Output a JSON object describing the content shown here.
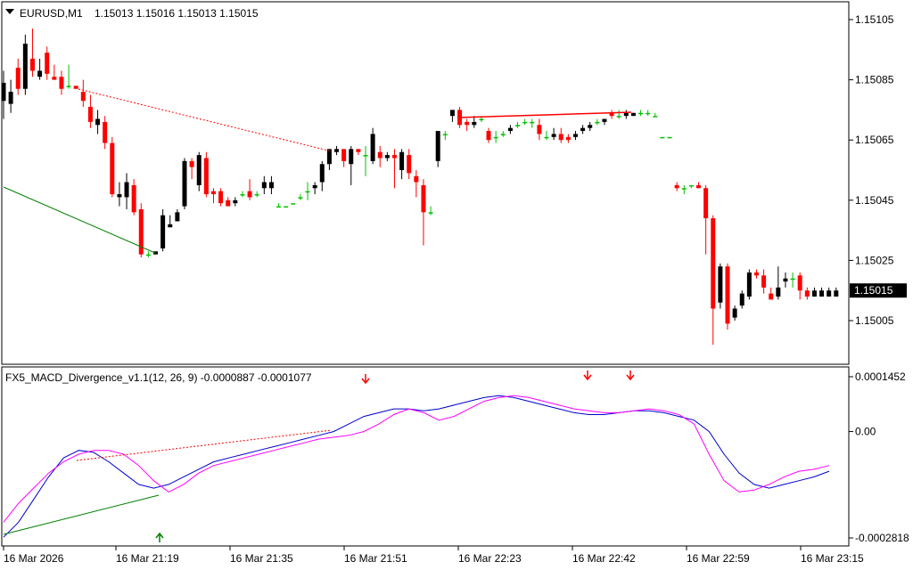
{
  "main": {
    "symbol": "EURUSD,M1",
    "ohlc": "1.15013 1.15016 1.15013 1.15015",
    "price_labels": [
      "1.15105",
      "1.15085",
      "1.15065",
      "1.15045",
      "1.15025",
      "1.15005"
    ],
    "price_values": [
      1.15105,
      1.15085,
      1.15065,
      1.15045,
      1.15025,
      1.15005
    ],
    "current_price_label": "1.15015",
    "current_price": 1.15015,
    "colors": {
      "bull": "#000000",
      "bear": "#ff0000",
      "doji": "#00c000",
      "trend_dn": "#ff0000",
      "trend_up": "#008000",
      "current_bg": "#000000"
    }
  },
  "indicator": {
    "name": "FX5_MACD_Divergence_v1.1(12, 26, 9) -0.0000887 -0.0001077",
    "scale_labels": [
      "0.0001452",
      "0.00",
      "-0.0002818"
    ],
    "scale_values": [
      0.0001452,
      0.0,
      -0.0002818
    ],
    "colors": {
      "main": "#ff00ff",
      "signal": "#0000cc",
      "arrow_down": "#ff0000",
      "arrow_up": "#008000"
    }
  },
  "time_labels": [
    "16 Mar 2026",
    "16 Mar 21:19",
    "16 Mar 21:35",
    "16 Mar 21:51",
    "16 Mar 22:23",
    "16 Mar 22:42",
    "16 Mar 22:59",
    "16 Mar 23:15"
  ],
  "chart_data": {
    "type": "candlestick",
    "x_slots": 116,
    "candles": [
      [
        1.15078,
        1.15088,
        1.15072,
        1.15084
      ],
      [
        1.15077,
        1.15085,
        1.15074,
        1.15081
      ],
      [
        1.15089,
        1.15092,
        1.1508,
        1.15082
      ],
      [
        1.15082,
        1.151,
        1.1508,
        1.15097
      ],
      [
        1.15092,
        1.15102,
        1.15086,
        1.15088
      ],
      [
        1.15086,
        1.15092,
        1.15085,
        1.15088
      ],
      [
        1.15094,
        1.15096,
        1.15085,
        1.15087
      ],
      [
        1.15086,
        1.1509,
        1.15085,
        1.15085
      ],
      [
        1.15086,
        1.15088,
        1.1508,
        1.15082
      ],
      [
        1.15083,
        1.1509,
        1.15082,
        1.15083
      ],
      [
        1.15083,
        1.15083,
        1.15082,
        1.15082
      ],
      [
        1.15081,
        1.15085,
        1.15076,
        1.15078
      ],
      [
        1.15076,
        1.1508,
        1.15069,
        1.15071
      ],
      [
        1.1507,
        1.15075,
        1.15067,
        1.15072
      ],
      [
        1.15071,
        1.15073,
        1.15062,
        1.15064
      ],
      [
        1.15064,
        1.15066,
        1.15046,
        1.15047
      ],
      [
        1.15046,
        1.15051,
        1.15043,
        1.15047
      ],
      [
        1.15046,
        1.15054,
        1.15042,
        1.15051
      ],
      [
        1.1505,
        1.15052,
        1.1504,
        1.15041
      ],
      [
        1.15042,
        1.15044,
        1.15026,
        1.15027
      ],
      [
        1.15027,
        1.15028,
        1.15026,
        1.15027
      ],
      [
        1.15027,
        1.15028,
        1.15027,
        1.15028
      ],
      [
        1.15029,
        1.15042,
        1.15028,
        1.1504
      ],
      [
        1.15036,
        1.1504,
        1.15036,
        1.15037
      ],
      [
        1.15038,
        1.15042,
        1.15038,
        1.15041
      ],
      [
        1.15043,
        1.15059,
        1.15042,
        1.15058
      ],
      [
        1.15058,
        1.15059,
        1.15052,
        1.15056
      ],
      [
        1.1505,
        1.15061,
        1.15048,
        1.1506
      ],
      [
        1.15059,
        1.15061,
        1.15046,
        1.15047
      ],
      [
        1.15048,
        1.15049,
        1.15044,
        1.15047
      ],
      [
        1.15048,
        1.15049,
        1.15043,
        1.15044
      ],
      [
        1.15045,
        1.15046,
        1.15043,
        1.15043
      ],
      [
        1.15044,
        1.15046,
        1.15043,
        1.15045
      ],
      [
        1.15047,
        1.15048,
        1.15046,
        1.15047
      ],
      [
        1.15048,
        1.15052,
        1.15045,
        1.15046
      ],
      [
        1.15047,
        1.15048,
        1.15046,
        1.15047
      ],
      [
        1.15049,
        1.15053,
        1.15047,
        1.15051
      ],
      [
        1.15049,
        1.15053,
        1.15047,
        1.15051
      ],
      [
        1.15043,
        1.15044,
        1.15043,
        1.15043
      ],
      [
        1.15043,
        1.15043,
        1.15043,
        1.15043
      ],
      [
        1.15044,
        1.15044,
        1.15044,
        1.15044
      ],
      [
        1.15046,
        1.15047,
        1.15045,
        1.15046
      ],
      [
        1.15048,
        1.15051,
        1.15045,
        1.15048
      ],
      [
        1.15049,
        1.15051,
        1.15047,
        1.1505
      ],
      [
        1.15051,
        1.15058,
        1.15048,
        1.15057
      ],
      [
        1.15057,
        1.15061,
        1.15055,
        1.15062
      ],
      [
        1.15061,
        1.15063,
        1.1506,
        1.15062
      ],
      [
        1.15062,
        1.15062,
        1.15056,
        1.15058
      ],
      [
        1.15057,
        1.15063,
        1.1505,
        1.15062
      ],
      [
        1.15062,
        1.15062,
        1.1506,
        1.15061
      ],
      [
        1.1506,
        1.15063,
        1.15053,
        1.1506
      ],
      [
        1.15058,
        1.15069,
        1.15057,
        1.15067
      ],
      [
        1.15061,
        1.15063,
        1.15056,
        1.15059
      ],
      [
        1.15059,
        1.15061,
        1.15058,
        1.1506
      ],
      [
        1.1506,
        1.15062,
        1.15049,
        1.15059
      ],
      [
        1.15055,
        1.15062,
        1.15052,
        1.15061
      ],
      [
        1.1506,
        1.15062,
        1.15052,
        1.15054
      ],
      [
        1.15053,
        1.15055,
        1.15046,
        1.15051
      ],
      [
        1.1505,
        1.15052,
        1.1503,
        1.15041
      ],
      [
        1.15041,
        1.15043,
        1.1504,
        1.15041
      ],
      [
        1.15058,
        1.15068,
        1.15056,
        1.15068
      ],
      [
        1.15067,
        1.15068,
        1.15065,
        1.15067
      ],
      [
        1.15073,
        1.15074,
        1.15071,
        1.15075
      ],
      [
        1.15075,
        1.15076,
        1.15069,
        1.1507
      ],
      [
        1.15071,
        1.15072,
        1.15068,
        1.1507
      ],
      [
        1.1507,
        1.15073,
        1.15069,
        1.15071
      ],
      [
        1.15072,
        1.15073,
        1.15071,
        1.15072
      ],
      [
        1.15068,
        1.15069,
        1.15064,
        1.15065
      ],
      [
        1.15066,
        1.15068,
        1.15064,
        1.15066
      ],
      [
        1.15067,
        1.15068,
        1.15066,
        1.15067
      ],
      [
        1.15068,
        1.1507,
        1.15067,
        1.15069
      ],
      [
        1.1507,
        1.15071,
        1.15069,
        1.1507
      ],
      [
        1.15071,
        1.15072,
        1.1507,
        1.15071
      ],
      [
        1.15071,
        1.15072,
        1.15069,
        1.15071
      ],
      [
        1.1507,
        1.15072,
        1.15065,
        1.15067
      ],
      [
        1.15066,
        1.15068,
        1.15065,
        1.15066
      ],
      [
        1.15066,
        1.15069,
        1.15065,
        1.15067
      ],
      [
        1.15067,
        1.15069,
        1.15064,
        1.15065
      ],
      [
        1.15066,
        1.15067,
        1.15064,
        1.15065
      ],
      [
        1.15066,
        1.15068,
        1.15065,
        1.15067
      ],
      [
        1.15068,
        1.1507,
        1.15067,
        1.15069
      ],
      [
        1.15069,
        1.15071,
        1.15068,
        1.1507
      ],
      [
        1.15071,
        1.15072,
        1.1507,
        1.15071
      ],
      [
        1.15071,
        1.15072,
        1.1507,
        1.15072
      ],
      [
        1.15074,
        1.15075,
        1.15072,
        1.15073
      ],
      [
        1.15073,
        1.15075,
        1.15072,
        1.15073
      ],
      [
        1.15073,
        1.15075,
        1.15072,
        1.15074
      ],
      [
        1.15073,
        1.15074,
        1.15073,
        1.15074
      ],
      [
        1.15074,
        1.15075,
        1.15073,
        1.15074
      ],
      [
        1.15074,
        1.15075,
        1.15073,
        1.15074
      ],
      [
        1.15073,
        1.15074,
        1.15073,
        1.15073
      ],
      [
        1.15066,
        1.15066,
        1.15066,
        1.15066
      ],
      [
        1.15066,
        1.15066,
        1.15066,
        1.15066
      ],
      [
        1.1505,
        1.15051,
        1.15048,
        1.15049
      ],
      [
        1.15049,
        1.1505,
        1.15047,
        1.15049
      ],
      [
        1.1505,
        1.1505,
        1.15049,
        1.1505
      ],
      [
        1.1505,
        1.15051,
        1.15049,
        1.15049
      ],
      [
        1.15049,
        1.1505,
        1.15027,
        1.15039
      ],
      [
        1.15039,
        1.1504,
        1.14997,
        1.15009
      ],
      [
        1.15011,
        1.15024,
        1.15009,
        1.15023
      ],
      [
        1.15023,
        1.15024,
        1.15002,
        1.15004
      ],
      [
        1.15006,
        1.1501,
        1.15005,
        1.15009
      ],
      [
        1.1501,
        1.15015,
        1.15009,
        1.15014
      ],
      [
        1.15013,
        1.15022,
        1.15012,
        1.15021
      ],
      [
        1.15021,
        1.15022,
        1.15019,
        1.1502
      ],
      [
        1.1502,
        1.15022,
        1.15014,
        1.15016
      ],
      [
        1.15014,
        1.15016,
        1.15012,
        1.15012
      ],
      [
        1.15013,
        1.15023,
        1.15012,
        1.15016
      ],
      [
        1.15018,
        1.15021,
        1.15016,
        1.15019
      ],
      [
        1.15019,
        1.15021,
        1.15016,
        1.15019
      ],
      [
        1.1502,
        1.15021,
        1.15012,
        1.15015
      ],
      [
        1.15015,
        1.15016,
        1.15012,
        1.15013
      ],
      [
        1.15013,
        1.15016,
        1.15013,
        1.15015
      ],
      [
        1.15013,
        1.15016,
        1.15013,
        1.15015
      ],
      [
        1.15013,
        1.15016,
        1.15013,
        1.15015
      ],
      [
        1.15013,
        1.15016,
        1.15013,
        1.15015
      ]
    ],
    "macd_main": [
      -0.00024,
      -0.00019,
      -0.00015,
      -0.00011,
      -8e-05,
      -6e-05,
      -5e-05,
      -5e-05,
      -6e-05,
      -9e-05,
      -0.00013,
      -0.00016,
      -0.00014,
      -0.00011,
      -9e-05,
      -8e-05,
      -7e-05,
      -6e-05,
      -5e-05,
      -4e-05,
      -3e-05,
      -2e-05,
      -1.5e-05,
      -1e-05,
      0.0,
      2e-05,
      4.5e-05,
      6e-05,
      5e-05,
      3e-05,
      4e-05,
      6e-05,
      8e-05,
      9e-05,
      9.5e-05,
      9e-05,
      8e-05,
      7e-05,
      6e-05,
      5.5e-05,
      5e-05,
      5e-05,
      5.5e-05,
      6e-05,
      5.5e-05,
      4.5e-05,
      2e-05,
      -6e-05,
      -0.00013,
      -0.00016,
      -0.000155,
      -0.00014,
      -0.00012,
      -0.000105,
      -0.0001,
      -9e-05
    ],
    "macd_signal": [
      -0.00028,
      -0.00024,
      -0.00018,
      -0.00012,
      -7e-05,
      -5e-05,
      -5.5e-05,
      -8e-05,
      -0.00011,
      -0.00014,
      -0.00015,
      -0.00014,
      -0.00012,
      -0.0001,
      -8e-05,
      -7e-05,
      -6e-05,
      -5e-05,
      -4e-05,
      -3e-05,
      -2e-05,
      -1e-05,
      0.0,
      2e-05,
      4e-05,
      5e-05,
      6e-05,
      6e-05,
      5.5e-05,
      6e-05,
      7e-05,
      8e-05,
      9e-05,
      9.5e-05,
      9e-05,
      8e-05,
      7e-05,
      6e-05,
      5e-05,
      4.5e-05,
      4.5e-05,
      5e-05,
      5.5e-05,
      5.5e-05,
      5e-05,
      4e-05,
      3e-05,
      0.0,
      -6e-05,
      -0.00011,
      -0.00014,
      -0.00015,
      -0.00014,
      -0.00013,
      -0.00012,
      -0.000105
    ]
  }
}
